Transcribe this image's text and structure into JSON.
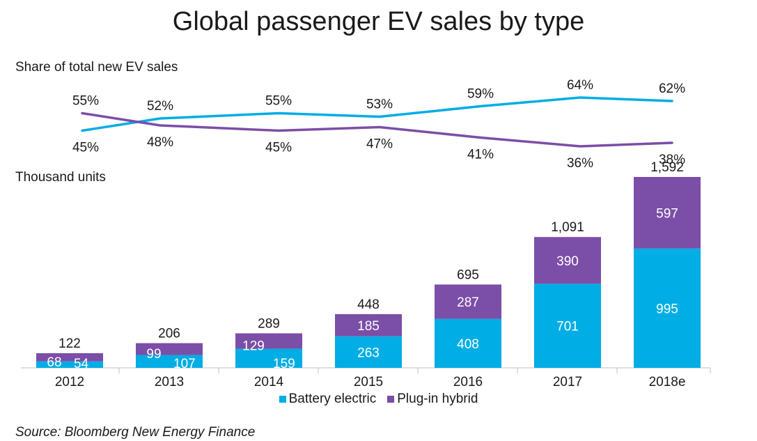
{
  "title": "Global passenger EV sales by type",
  "source": "Source: Bloomberg New Energy Finance",
  "colors": {
    "battery": "#00ade4",
    "plugin": "#7b4ea7",
    "axis": "#bfbfbf",
    "text": "#1a1a1a"
  },
  "chart_data": [
    {
      "type": "line",
      "title": "Share of total new EV sales",
      "categories": [
        "2012",
        "2013",
        "2014",
        "2015",
        "2016",
        "2017",
        "2018e"
      ],
      "series": [
        {
          "name": "Battery electric",
          "values": [
            45,
            52,
            55,
            53,
            59,
            64,
            62
          ],
          "labels": [
            "45%",
            "52%",
            "55%",
            "53%",
            "59%",
            "64%",
            "62%"
          ]
        },
        {
          "name": "Plug-in hybrid",
          "values": [
            55,
            48,
            45,
            47,
            41,
            36,
            38
          ],
          "labels": [
            "55%",
            "48%",
            "45%",
            "47%",
            "41%",
            "36%",
            "38%"
          ]
        }
      ]
    },
    {
      "type": "bar",
      "stacked": true,
      "title": "Thousand units",
      "categories": [
        "2012",
        "2013",
        "2014",
        "2015",
        "2016",
        "2017",
        "2018e"
      ],
      "series": [
        {
          "name": "Battery electric",
          "values": [
            54,
            107,
            159,
            263,
            408,
            701,
            995
          ]
        },
        {
          "name": "Plug-in hybrid",
          "values": [
            68,
            99,
            129,
            185,
            287,
            390,
            597
          ]
        }
      ],
      "totals": [
        "122",
        "206",
        "289",
        "448",
        "695",
        "1,091",
        "1,592"
      ],
      "legend": "bottom-center"
    }
  ]
}
